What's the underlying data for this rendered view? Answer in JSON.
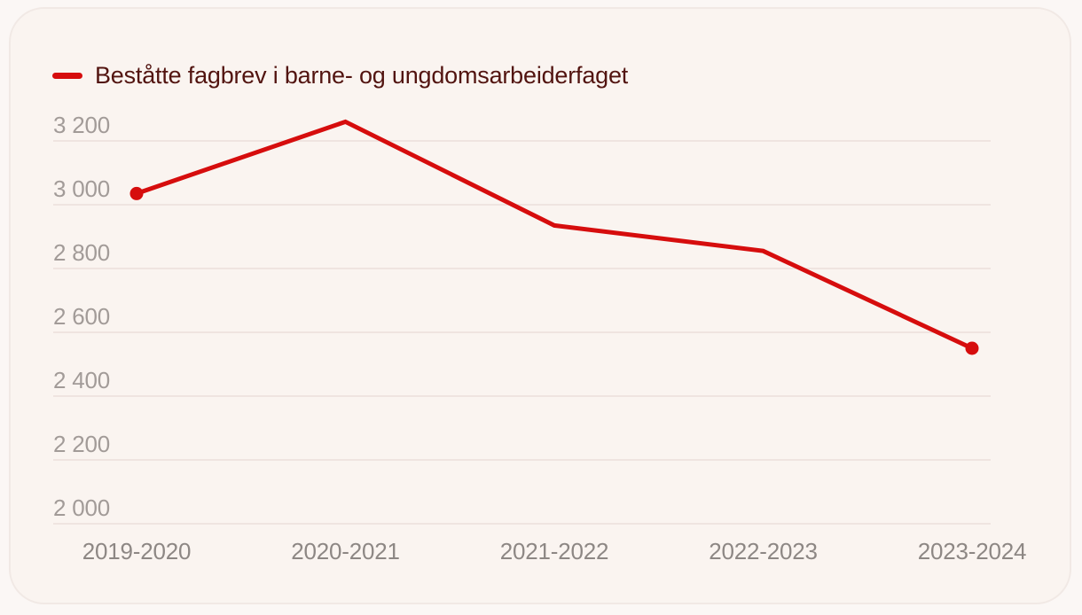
{
  "colors": {
    "page_background": "#fbf7f5",
    "card_background": "#faf4f0",
    "card_border": "#f1e9e5",
    "gridline": "#ebdfda",
    "y_tick_text": "#a29b98",
    "x_tick_text": "#8d8784",
    "series_red": "#d60d0d",
    "legend_text": "#521410"
  },
  "chart_data": {
    "type": "line",
    "title": "",
    "xlabel": "",
    "ylabel": "",
    "categories": [
      "2019-2020",
      "2020-2021",
      "2021-2022",
      "2022-2023",
      "2023-2024"
    ],
    "series": [
      {
        "name": "Beståtte fagbrev i barne- og ungdomsarbeiderfaget",
        "values": [
          3035,
          3260,
          2935,
          2855,
          2550
        ],
        "color": "#d60d0d"
      }
    ],
    "ylim": [
      2000,
      3200
    ],
    "y_ticks": [
      3200,
      3000,
      2800,
      2600,
      2400,
      2200,
      2000
    ],
    "y_tick_labels": [
      "3 200",
      "3 000",
      "2 800",
      "2 600",
      "2 400",
      "2 200",
      "2 000"
    ],
    "grid": true,
    "legend_position": "top-left",
    "markers": "first-and-last-point-only"
  }
}
